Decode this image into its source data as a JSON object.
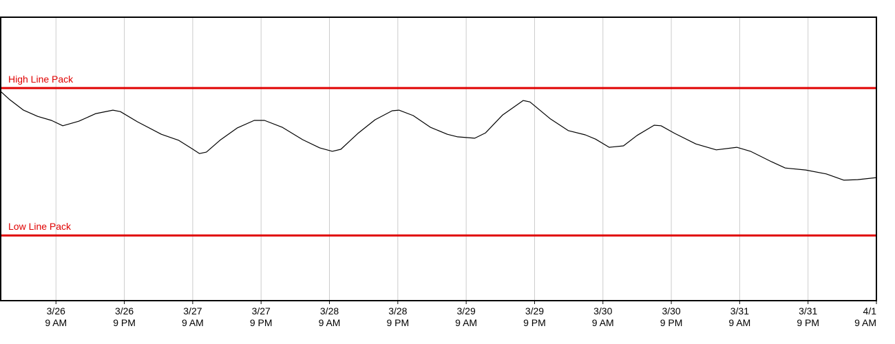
{
  "chart_data": {
    "type": "line",
    "x": [
      -9.7,
      -8.1,
      -5.7,
      -3.2,
      -0.8,
      1.2,
      4.0,
      7.0,
      10.0,
      11.3,
      14.3,
      18.5,
      21.5,
      23.9,
      25.2,
      26.4,
      28.8,
      31.8,
      34.8,
      36.6,
      39.7,
      43.3,
      46.3,
      48.5,
      50.0,
      53.0,
      56.0,
      59.0,
      60.2,
      62.7,
      65.7,
      68.7,
      70.5,
      73.5,
      75.4,
      78.4,
      82.0,
      83.2,
      86.8,
      89.9,
      92.9,
      94.7,
      97.1,
      99.6,
      102.0,
      105.0,
      106.2,
      108.6,
      112.3,
      115.9,
      119.5,
      121.9,
      125.6,
      128.0,
      131.6,
      135.2,
      138.3,
      140.7,
      144.0
    ],
    "series": [
      {
        "color": "#000000",
        "values": [
          73.8,
          70.9,
          67.2,
          65.0,
          63.6,
          61.7,
          63.3,
          66.0,
          67.2,
          66.7,
          63.1,
          58.7,
          56.6,
          53.6,
          51.9,
          52.4,
          56.6,
          60.9,
          63.6,
          63.6,
          61.2,
          56.8,
          53.9,
          52.7,
          53.4,
          59.0,
          63.8,
          67.0,
          67.2,
          65.3,
          61.2,
          58.7,
          57.8,
          57.3,
          59.2,
          65.5,
          70.6,
          70.1,
          64.1,
          60.0,
          58.5,
          57.0,
          54.1,
          54.6,
          58.3,
          61.9,
          61.7,
          59.0,
          55.3,
          53.2,
          54.1,
          52.7,
          49.0,
          46.8,
          46.1,
          44.7,
          42.5,
          42.7,
          43.4
        ]
      }
    ],
    "xlim": [
      -9.7,
      144
    ],
    "ylim": [
      0,
      100
    ],
    "xticks": [
      {
        "value": 0,
        "label": [
          "3/26",
          "9 AM"
        ]
      },
      {
        "value": 12,
        "label": [
          "3/26",
          "9 PM"
        ]
      },
      {
        "value": 24,
        "label": [
          "3/27",
          "9 AM"
        ]
      },
      {
        "value": 36,
        "label": [
          "3/27",
          "9 PM"
        ]
      },
      {
        "value": 48,
        "label": [
          "3/28",
          "9 AM"
        ]
      },
      {
        "value": 60,
        "label": [
          "3/28",
          "9 PM"
        ]
      },
      {
        "value": 72,
        "label": [
          "3/29",
          "9 AM"
        ]
      },
      {
        "value": 84,
        "label": [
          "3/29",
          "9 PM"
        ]
      },
      {
        "value": 96,
        "label": [
          "3/30",
          "9 AM"
        ]
      },
      {
        "value": 108,
        "label": [
          "3/30",
          "9 PM"
        ]
      },
      {
        "value": 120,
        "label": [
          "3/31",
          "9 AM"
        ]
      },
      {
        "value": 132,
        "label": [
          "3/31",
          "9 PM"
        ]
      },
      {
        "value": 144,
        "label": [
          "4/1",
          "9 AM"
        ]
      }
    ],
    "grid": true,
    "reference_lines": [
      {
        "label": "High Line Pack",
        "value": 75,
        "color": "#e00000"
      },
      {
        "label": "Low Line Pack",
        "value": 23,
        "color": "#e00000"
      }
    ]
  }
}
